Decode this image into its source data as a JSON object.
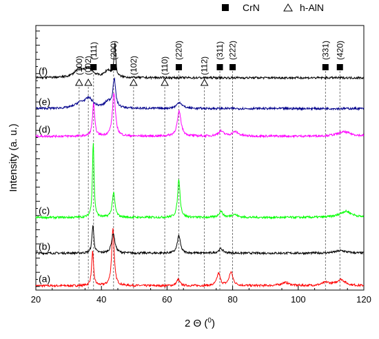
{
  "chart_data": {
    "type": "line",
    "title": "",
    "xlabel": "2 Θ (",
    "xlabel_unit": "0",
    "xlabel_close": ")",
    "ylabel": "Intensity (a. u.)",
    "xlim": [
      20,
      120
    ],
    "xticks": [
      "20",
      "40",
      "60",
      "80",
      "100",
      "120"
    ],
    "legend": [
      {
        "marker": "filled-square",
        "label": "CrN"
      },
      {
        "marker": "open-triangle",
        "label": "h-AlN"
      }
    ],
    "reflections": [
      {
        "label": "(100)",
        "x": 33.2,
        "phase": "h-AlN"
      },
      {
        "label": "(002)",
        "x": 36.0,
        "phase": "h-AlN"
      },
      {
        "label": "(111)",
        "x": 37.6,
        "phase": "CrN"
      },
      {
        "label": "(200)",
        "x": 43.7,
        "phase": "CrN"
      },
      {
        "label": "(102)",
        "x": 49.8,
        "phase": "h-AlN"
      },
      {
        "label": "(110)",
        "x": 59.3,
        "phase": "h-AlN"
      },
      {
        "label": "(220)",
        "x": 63.6,
        "phase": "CrN"
      },
      {
        "label": "(112)",
        "x": 71.4,
        "phase": "h-AlN"
      },
      {
        "label": "(311)",
        "x": 76.1,
        "phase": "CrN"
      },
      {
        "label": "(222)",
        "x": 80.0,
        "phase": "CrN"
      },
      {
        "label": "(331)",
        "x": 108.3,
        "phase": "CrN"
      },
      {
        "label": "(420)",
        "x": 112.7,
        "phase": "CrN"
      }
    ],
    "series": [
      {
        "name": "(a)",
        "color": "#ff0000",
        "baseline": 0.7,
        "peaks": [
          [
            37.3,
            5.5,
            0.35
          ],
          [
            43.5,
            9.3,
            0.45
          ],
          [
            63.4,
            1.0,
            0.6
          ],
          [
            75.7,
            2.0,
            0.6
          ],
          [
            79.5,
            2.2,
            0.7
          ],
          [
            96.0,
            0.5,
            1.5
          ],
          [
            108.5,
            0.5,
            1.5
          ],
          [
            113.0,
            1.0,
            1.5
          ]
        ]
      },
      {
        "name": "(b)",
        "color": "#000000",
        "baseline": 6.0,
        "peaks": [
          [
            37.4,
            4.5,
            0.35
          ],
          [
            43.6,
            3.2,
            0.6
          ],
          [
            63.6,
            2.9,
            0.55
          ],
          [
            76.4,
            0.7,
            0.8
          ],
          [
            113.0,
            0.4,
            2.0
          ]
        ]
      },
      {
        "name": "(c)",
        "color": "#00ff00",
        "baseline": 11.8,
        "peaks": [
          [
            37.5,
            12.2,
            0.3
          ],
          [
            43.7,
            4.0,
            0.5
          ],
          [
            63.6,
            6.2,
            0.45
          ],
          [
            76.4,
            1.0,
            0.7
          ],
          [
            80.5,
            0.5,
            1.0
          ],
          [
            114.5,
            1.0,
            2.2
          ]
        ]
      },
      {
        "name": "(d)",
        "color": "#ff00ff",
        "baseline": 25.0,
        "peaks": [
          [
            37.6,
            5.4,
            0.4
          ],
          [
            43.8,
            7.0,
            0.55
          ],
          [
            63.7,
            4.0,
            0.7
          ],
          [
            76.4,
            0.8,
            1.0
          ],
          [
            80.8,
            0.7,
            1.2
          ],
          [
            114.0,
            0.7,
            2.5
          ]
        ]
      },
      {
        "name": "(e)",
        "color": "#00008b",
        "baseline": 29.5,
        "peaks": [
          [
            33.5,
            0.8,
            1.8
          ],
          [
            36.2,
            1.5,
            1.5
          ],
          [
            43.9,
            4.6,
            0.5
          ],
          [
            42.0,
            1.0,
            1.2
          ],
          [
            63.8,
            1.0,
            1.0
          ]
        ]
      },
      {
        "name": "(f)",
        "color": "#000000",
        "baseline": 34.5,
        "peaks": [
          [
            33.0,
            1.2,
            1.5
          ],
          [
            36.0,
            1.5,
            1.6
          ],
          [
            44.1,
            5.4,
            0.3
          ],
          [
            42.0,
            1.1,
            1.2
          ]
        ]
      }
    ]
  }
}
